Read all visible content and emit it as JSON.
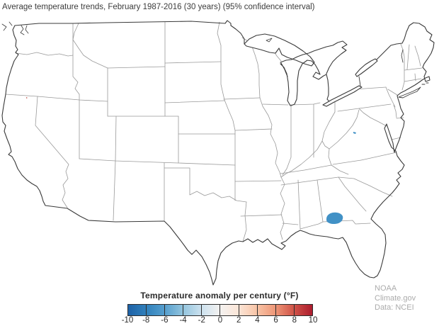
{
  "title": "Average temperature trends, February 1987-2016 (30 years) (95% confidence interval)",
  "legend": {
    "title": "Temperature anomaly per century (°F)",
    "ticks": [
      "-10",
      "-8",
      "-6",
      "-4",
      "-2",
      "0",
      "2",
      "4",
      "6",
      "8",
      "10"
    ],
    "gradient_stops": [
      "#1e62a7",
      "#3181bc",
      "#569fce",
      "#94c5de",
      "#cde2ef",
      "#f4f2f0",
      "#fbe5d7",
      "#f8c4a6",
      "#ee9677",
      "#d05348",
      "#ac1c2e"
    ],
    "frame_color": "#2d2d2d"
  },
  "attribution": {
    "source": "NOAA Climate.gov",
    "data": "Data: NCEI"
  },
  "map": {
    "state_border_color": "#999999",
    "coast_color": "#3a3a3a",
    "regions": [
      {
        "name": "south-georgia-cooling-anomaly",
        "color": "#4191c6"
      },
      {
        "name": "west-virginia-cooling-speck",
        "color": "#4191c6"
      },
      {
        "name": "north-california-warming-speck",
        "color": "#c2554a"
      }
    ]
  }
}
